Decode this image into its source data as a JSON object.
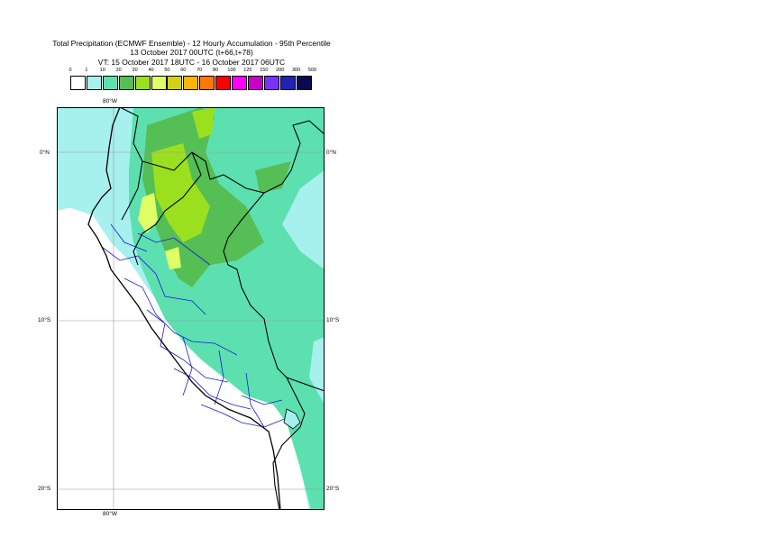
{
  "title": {
    "line1": "Total Precipitation (ECMWF Ensemble) - 12 Hourly Accumulation - 95th Percentile",
    "line2": "13 October 2017 00UTC (t+66,t+78)",
    "line3": "VT: 15 October 2017 18UTC - 16 October 2017 06UTC"
  },
  "legend": {
    "labels": [
      "0",
      "1",
      "10",
      "20",
      "30",
      "40",
      "50",
      "60",
      "70",
      "80",
      "100",
      "125",
      "150",
      "200",
      "300",
      "500"
    ],
    "colors": [
      "#ffffff",
      "#a6f0ee",
      "#5ce0b0",
      "#55be55",
      "#9be01e",
      "#e0ff66",
      "#d2d214",
      "#ffb400",
      "#ff7800",
      "#ff0000",
      "#ff00ff",
      "#c800c8",
      "#7a33ff",
      "#2222b4",
      "#0a0a50"
    ]
  },
  "map": {
    "lat_labels": [
      "0°N",
      "10°S",
      "20°S"
    ],
    "lon_labels": [
      "80°W"
    ]
  }
}
